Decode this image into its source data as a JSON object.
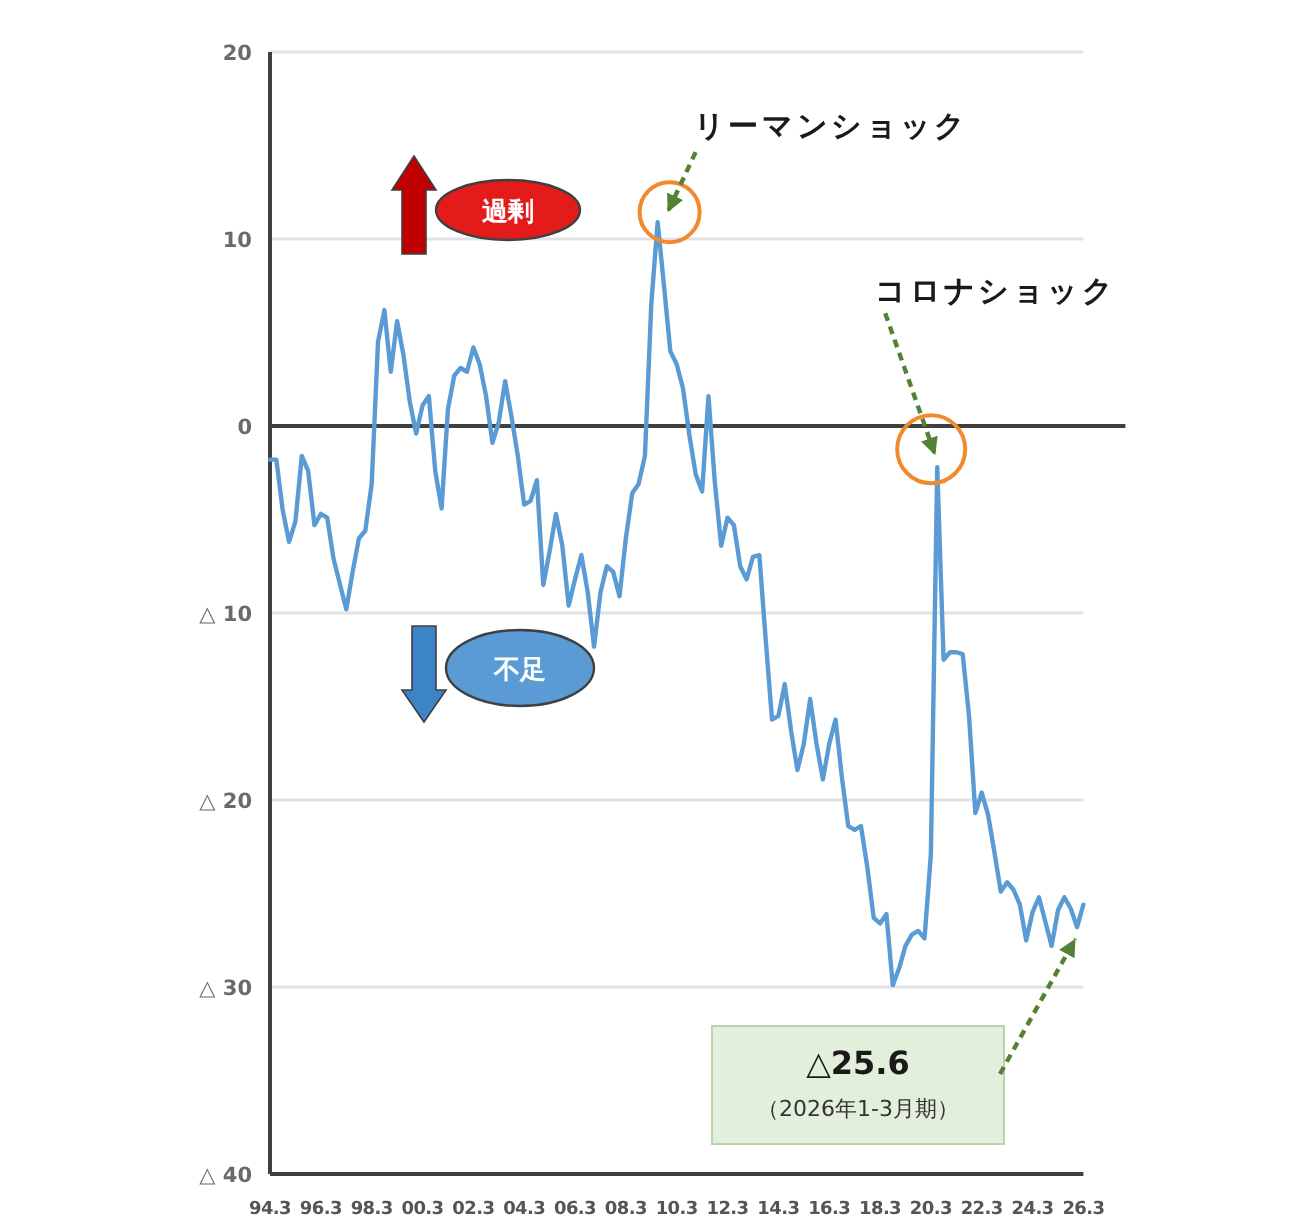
{
  "chart_data": {
    "type": "line",
    "x": [
      "1994-03",
      "1994-06",
      "1994-09",
      "1994-12",
      "1995-03",
      "1995-06",
      "1995-09",
      "1995-12",
      "1996-03",
      "1996-06",
      "1996-09",
      "1997-03",
      "1997-06",
      "1997-09",
      "1997-12",
      "1998-03",
      "1998-06",
      "1998-09",
      "1998-12",
      "1999-03",
      "1999-06",
      "1999-09",
      "1999-12",
      "2000-03",
      "2000-06",
      "2000-09",
      "2000-12",
      "2001-03",
      "2001-06",
      "2001-09",
      "2001-12",
      "2002-03",
      "2002-06",
      "2002-09",
      "2002-12",
      "2003-03",
      "2003-06",
      "2003-09",
      "2003-12",
      "2004-03",
      "2004-06",
      "2004-09",
      "2004-12",
      "2005-03",
      "2005-06",
      "2005-09",
      "2005-12",
      "2006-03",
      "2006-06",
      "2006-09",
      "2006-12",
      "2007-03",
      "2007-06",
      "2007-09",
      "2007-12",
      "2008-03",
      "2008-06",
      "2008-09",
      "2008-12",
      "2009-03",
      "2009-06",
      "2009-09",
      "2009-12",
      "2010-03",
      "2010-06",
      "2010-09",
      "2010-12",
      "2011-03",
      "2011-06",
      "2011-09",
      "2011-12",
      "2012-03",
      "2012-06",
      "2012-09",
      "2012-12",
      "2013-03",
      "2013-06",
      "2013-09",
      "2013-12",
      "2014-03",
      "2014-06",
      "2014-09",
      "2014-12",
      "2015-03",
      "2015-06",
      "2015-09",
      "2015-12",
      "2016-03",
      "2016-06",
      "2016-09",
      "2016-12",
      "2017-03",
      "2017-06",
      "2017-09",
      "2017-12",
      "2018-03",
      "2018-06",
      "2018-09",
      "2018-12",
      "2019-03",
      "2019-06",
      "2019-09",
      "2019-12",
      "2020-03",
      "2020-06",
      "2020-09",
      "2020-12",
      "2021-03",
      "2021-06",
      "2021-09",
      "2021-12",
      "2022-03",
      "2022-06",
      "2022-09",
      "2022-12",
      "2023-03",
      "2023-06",
      "2023-09",
      "2023-12",
      "2024-03",
      "2024-06",
      "2024-09",
      "2024-12",
      "2025-03",
      "2025-06",
      "2025-09",
      "2025-12",
      "2026-03"
    ],
    "series": [
      {
        "color": "#5b9bd5",
        "values": [
          -1.8,
          -1.8,
          -4.5,
          -6.2,
          -5.1,
          -1.6,
          -2.4,
          -5.3,
          -4.7,
          -4.9,
          -7.1,
          -9.8,
          -7.8,
          -6.0,
          -5.6,
          -3.1,
          4.5,
          6.2,
          2.9,
          5.6,
          3.8,
          1.3,
          -0.4,
          1.1,
          1.6,
          -2.4,
          -4.4,
          0.9,
          2.7,
          3.1,
          2.9,
          4.2,
          3.3,
          1.6,
          -0.9,
          0.2,
          2.4,
          0.5,
          -1.6,
          -4.2,
          -4.0,
          -2.9,
          -8.5,
          -6.7,
          -4.7,
          -6.4,
          -9.6,
          -8.2,
          -6.9,
          -8.9,
          -11.8,
          -8.9,
          -7.5,
          -7.8,
          -9.1,
          -6.0,
          -3.6,
          -3.1,
          -1.6,
          6.5,
          10.9,
          7.5,
          4.0,
          3.3,
          2.0,
          -0.5,
          -2.6,
          -3.5,
          1.6,
          -3.0,
          -6.4,
          -4.9,
          -5.3,
          -7.5,
          -8.2,
          -7.0,
          -6.9,
          -11.4,
          -15.7,
          -15.5,
          -13.8,
          -16.3,
          -18.4,
          -17.0,
          -14.6,
          -17.0,
          -18.9,
          -17.0,
          -15.7,
          -18.8,
          -21.4,
          -21.6,
          -21.4,
          -23.6,
          -26.3,
          -26.6,
          -26.1,
          -29.9,
          -29.0,
          -27.8,
          -27.2,
          -27.0,
          -27.4,
          -22.9,
          -2.2,
          -12.5,
          -12.1,
          -12.1,
          -12.2,
          -15.5,
          -20.7,
          -19.6,
          -20.8,
          -22.8,
          -24.9,
          -24.4,
          -24.8,
          -25.6,
          -27.5,
          -26.0,
          -25.2,
          -26.5,
          -27.8,
          -25.9,
          -25.2,
          -25.8,
          -26.8,
          -25.6
        ]
      }
    ],
    "xlim": [
      "1994-03",
      "2026-03"
    ],
    "xticks": [
      {
        "value": "1994-03",
        "label": "94.3"
      },
      {
        "value": "1996-03",
        "label": "96.3"
      },
      {
        "value": "1998-03",
        "label": "98.3"
      },
      {
        "value": "2000-03",
        "label": "00.3"
      },
      {
        "value": "2002-03",
        "label": "02.3"
      },
      {
        "value": "2004-03",
        "label": "04.3"
      },
      {
        "value": "2006-03",
        "label": "06.3"
      },
      {
        "value": "2008-03",
        "label": "08.3"
      },
      {
        "value": "2010-03",
        "label": "10.3"
      },
      {
        "value": "2012-03",
        "label": "12.3"
      },
      {
        "value": "2014-03",
        "label": "14.3"
      },
      {
        "value": "2016-03",
        "label": "16.3"
      },
      {
        "value": "2018-03",
        "label": "18.3"
      },
      {
        "value": "2020-03",
        "label": "20.3"
      },
      {
        "value": "2022-03",
        "label": "22.3"
      },
      {
        "value": "2024-03",
        "label": "24.3"
      },
      {
        "value": "2026-03",
        "label": "26.3"
      }
    ],
    "ylim": [
      -40,
      20
    ],
    "yticks": [
      20,
      10,
      0,
      {
        "value": -10,
        "label": "△ 10"
      },
      {
        "value": -20,
        "label": "△ 20"
      },
      {
        "value": -30,
        "label": "△ 30"
      },
      {
        "value": -40,
        "label": "△ 40"
      }
    ],
    "grid": "y",
    "ref_lines": [
      {
        "axis": "y",
        "value": 0,
        "color": "#404040"
      }
    ],
    "annotations": [
      {
        "text": "リーマンショック",
        "x": "2009-06",
        "y": 10.9
      },
      "コロナショック",
      "過剰",
      "不足",
      "△25.6",
      "（2026年1-3月期）"
    ]
  }
}
